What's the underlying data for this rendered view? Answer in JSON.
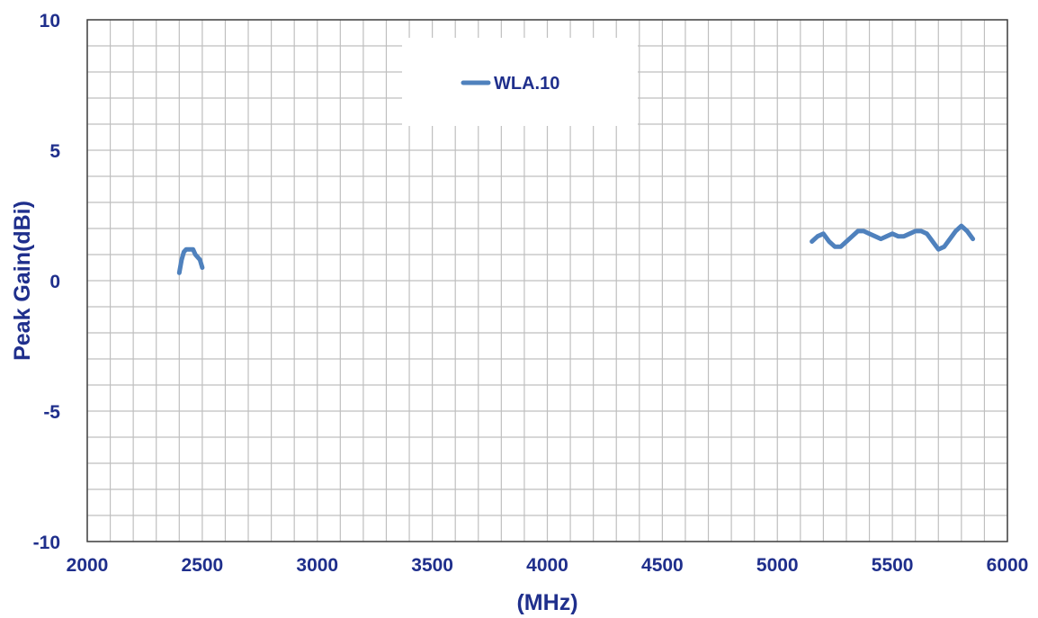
{
  "chart_data": {
    "type": "line",
    "title": "",
    "xlabel": "(MHz)",
    "ylabel": "Peak Gain(dBi)",
    "xlim": [
      2000,
      6000
    ],
    "ylim": [
      -10,
      10
    ],
    "x_ticks": [
      2000,
      2500,
      3000,
      3500,
      4000,
      4500,
      5000,
      5500,
      6000
    ],
    "y_ticks": [
      10,
      5,
      0,
      -5,
      -10
    ],
    "x_tick_labels": [
      "2000",
      "2500",
      "3000",
      "3500",
      "4000",
      "4500",
      "5000",
      "5500",
      "6000"
    ],
    "y_tick_labels": [
      "10",
      "5",
      "0",
      "-5",
      "-10"
    ],
    "x_minor_step": 100,
    "y_minor_step": 1,
    "grid": true,
    "legend_position": "top-center",
    "colors": {
      "series": "#4f81bd",
      "text": "#1f2f8c",
      "grid": "#bfbfbf",
      "axis": "#404040"
    },
    "legend": {
      "label": "WLA.10"
    },
    "series": [
      {
        "name": "WLA.10",
        "segments": [
          [
            [
              2400,
              0.3
            ],
            [
              2410,
              0.8
            ],
            [
              2420,
              1.1
            ],
            [
              2430,
              1.2
            ],
            [
              2440,
              1.2
            ],
            [
              2450,
              1.2
            ],
            [
              2460,
              1.2
            ],
            [
              2470,
              1.0
            ],
            [
              2480,
              0.9
            ],
            [
              2490,
              0.8
            ],
            [
              2500,
              0.5
            ]
          ],
          [
            [
              5150,
              1.5
            ],
            [
              5175,
              1.7
            ],
            [
              5200,
              1.8
            ],
            [
              5225,
              1.5
            ],
            [
              5250,
              1.3
            ],
            [
              5275,
              1.3
            ],
            [
              5300,
              1.5
            ],
            [
              5325,
              1.7
            ],
            [
              5350,
              1.9
            ],
            [
              5375,
              1.9
            ],
            [
              5400,
              1.8
            ],
            [
              5425,
              1.7
            ],
            [
              5450,
              1.6
            ],
            [
              5475,
              1.7
            ],
            [
              5500,
              1.8
            ],
            [
              5525,
              1.7
            ],
            [
              5550,
              1.7
            ],
            [
              5575,
              1.8
            ],
            [
              5600,
              1.9
            ],
            [
              5625,
              1.9
            ],
            [
              5650,
              1.8
            ],
            [
              5675,
              1.5
            ],
            [
              5700,
              1.2
            ],
            [
              5725,
              1.3
            ],
            [
              5750,
              1.6
            ],
            [
              5775,
              1.9
            ],
            [
              5800,
              2.1
            ],
            [
              5825,
              1.9
            ],
            [
              5850,
              1.6
            ]
          ]
        ]
      }
    ]
  }
}
